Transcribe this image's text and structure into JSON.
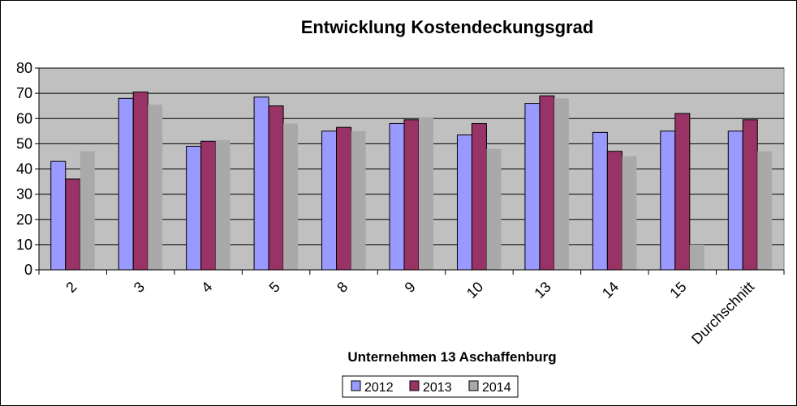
{
  "chart_data": {
    "type": "bar",
    "title": "Entwicklung Kostendeckungsgrad",
    "xlabel": "Unternehmen 13 Aschaffenburg",
    "ylabel": "",
    "ylim": [
      0,
      80
    ],
    "yticks": [
      0,
      10,
      20,
      30,
      40,
      50,
      60,
      70,
      80
    ],
    "grid": true,
    "legend_position": "bottom",
    "categories": [
      "2",
      "3",
      "4",
      "5",
      "8",
      "9",
      "10",
      "13",
      "14",
      "15",
      "Durchschnitt"
    ],
    "series": [
      {
        "name": "2012",
        "color": "#9999FF",
        "values": [
          43,
          68,
          49,
          68.5,
          55,
          58,
          53.5,
          66,
          54.5,
          55,
          55
        ]
      },
      {
        "name": "2013",
        "color": "#993366",
        "values": [
          36,
          70.5,
          51,
          65,
          56.5,
          59.5,
          58,
          69,
          47,
          62,
          59.5
        ]
      },
      {
        "name": "2014",
        "color": "#A9A9A9",
        "values": [
          47,
          65.5,
          51.5,
          58,
          55,
          60.5,
          48,
          68,
          45,
          10,
          47
        ]
      }
    ],
    "plot_background": "#C0C0C0"
  }
}
